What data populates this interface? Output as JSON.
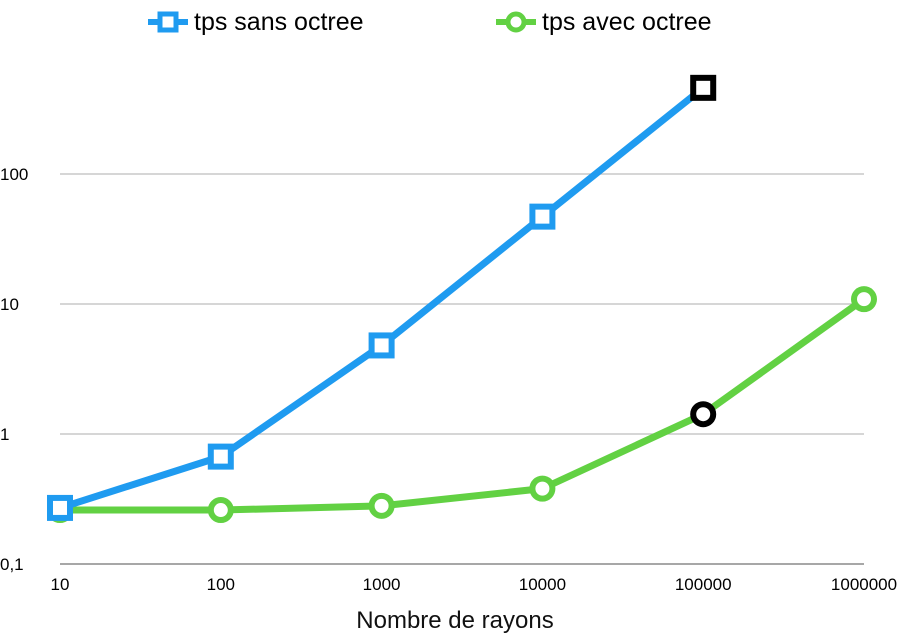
{
  "chart_data": {
    "type": "line",
    "xscale": "log",
    "yscale": "log",
    "x": [
      10,
      100,
      1000,
      10000,
      100000,
      1000000
    ],
    "xlabel": "Nombre de rayons",
    "ylabel": "",
    "x_tick_labels": [
      "10",
      "100",
      "1000",
      "10000",
      "100000",
      "1000000"
    ],
    "y_tick_labels": [
      "0,1",
      "1",
      "10",
      "100"
    ],
    "y_ticks": [
      0.1,
      1,
      10,
      100
    ],
    "ylim": [
      0.1,
      600
    ],
    "grid": true,
    "legend_position": "top",
    "series": [
      {
        "name": "tps sans octree",
        "color": "#1f9bf0",
        "marker": "square",
        "x": [
          10,
          100,
          1000,
          10000,
          100000
        ],
        "values": [
          0.27,
          0.67,
          4.8,
          47,
          460
        ],
        "highlight_index": 4
      },
      {
        "name": "tps avec octree",
        "color": "#62d143",
        "marker": "circle",
        "x": [
          10,
          100,
          1000,
          10000,
          100000,
          1000000
        ],
        "values": [
          0.26,
          0.26,
          0.28,
          0.38,
          1.42,
          10.9
        ],
        "highlight_index": 4
      }
    ]
  }
}
